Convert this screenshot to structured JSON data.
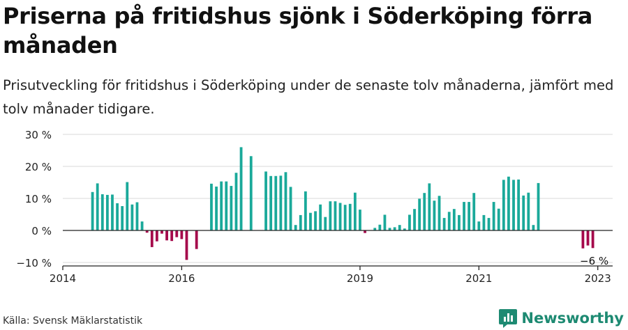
{
  "header": {
    "title": "Priserna på fritidshus sjönk i Söderköping förra månaden",
    "subtitle": "Prisutveckling för fritidshus i Söderköping under de senaste tolv månaderna, jämfört med tolv månader tidigare."
  },
  "footer": {
    "source": "Källa: Svensk Mäklarstatistik",
    "brand": "Newsworthy"
  },
  "colors": {
    "positive": "#1aa99a",
    "negative": "#a5094b",
    "grid": "#d9d9d9",
    "axis": "#222222",
    "brand": "#1d8a72"
  },
  "chart_data": {
    "type": "bar",
    "ylim": [
      -10,
      30
    ],
    "y_ticks": [
      30,
      20,
      10,
      0,
      -10
    ],
    "y_tick_labels": [
      "30 %",
      "20 %",
      "10 %",
      "0 %",
      "−10 %"
    ],
    "x_ticks": [
      {
        "label": "2014",
        "value": "2014-01"
      },
      {
        "label": "2016",
        "value": "2016-01"
      },
      {
        "label": "2019",
        "value": "2019-01"
      },
      {
        "label": "2021",
        "value": "2021-01"
      },
      {
        "label": "2023",
        "value": "2023-01"
      }
    ],
    "x_range": [
      "2014-01",
      "2023-04"
    ],
    "annotation": {
      "text": "−6 %",
      "value": "2022-12"
    },
    "series": [
      {
        "values": [
          [
            "2014-07",
            12
          ],
          [
            "2014-08",
            14.7
          ],
          [
            "2014-09",
            11.3
          ],
          [
            "2014-10",
            11.1
          ],
          [
            "2014-11",
            11.2
          ],
          [
            "2014-12",
            8.5
          ],
          [
            "2015-01",
            7.6
          ],
          [
            "2015-02",
            15.1
          ],
          [
            "2015-03",
            8.1
          ],
          [
            "2015-04",
            8.8
          ],
          [
            "2015-05",
            2.8
          ],
          [
            "2015-06",
            -0.7
          ],
          [
            "2015-07",
            -5.2
          ],
          [
            "2015-08",
            -3.4
          ],
          [
            "2015-09",
            -1.0
          ],
          [
            "2015-10",
            -3.1
          ],
          [
            "2015-11",
            -3.3
          ],
          [
            "2015-12",
            -2.1
          ],
          [
            "2016-01",
            -2.7
          ],
          [
            "2016-02",
            -9.2
          ],
          [
            "2016-04",
            -5.8
          ],
          [
            "2016-07",
            14.6
          ],
          [
            "2016-08",
            13.7
          ],
          [
            "2016-09",
            15.3
          ],
          [
            "2016-10",
            15.3
          ],
          [
            "2016-11",
            13.9
          ],
          [
            "2016-12",
            18.0
          ],
          [
            "2017-01",
            26.0
          ],
          [
            "2017-03",
            23.2
          ],
          [
            "2017-06",
            18.4
          ],
          [
            "2017-07",
            17.0
          ],
          [
            "2017-08",
            17.0
          ],
          [
            "2017-09",
            17.1
          ],
          [
            "2017-10",
            18.2
          ],
          [
            "2017-11",
            13.6
          ],
          [
            "2017-12",
            1.7
          ],
          [
            "2018-01",
            4.8
          ],
          [
            "2018-02",
            12.2
          ],
          [
            "2018-03",
            5.5
          ],
          [
            "2018-04",
            6.0
          ],
          [
            "2018-05",
            8.1
          ],
          [
            "2018-06",
            4.2
          ],
          [
            "2018-07",
            9.1
          ],
          [
            "2018-08",
            9.1
          ],
          [
            "2018-09",
            8.6
          ],
          [
            "2018-10",
            8.0
          ],
          [
            "2018-11",
            8.3
          ],
          [
            "2018-12",
            11.8
          ],
          [
            "2019-01",
            6.5
          ],
          [
            "2019-02",
            -0.8
          ],
          [
            "2019-04",
            0.8
          ],
          [
            "2019-05",
            1.8
          ],
          [
            "2019-06",
            4.9
          ],
          [
            "2019-07",
            0.8
          ],
          [
            "2019-08",
            1.0
          ],
          [
            "2019-09",
            1.7
          ],
          [
            "2019-10",
            0.6
          ],
          [
            "2019-11",
            4.9
          ],
          [
            "2019-12",
            6.7
          ],
          [
            "2020-01",
            9.9
          ],
          [
            "2020-02",
            11.7
          ],
          [
            "2020-03",
            14.7
          ],
          [
            "2020-04",
            9.3
          ],
          [
            "2020-05",
            10.8
          ],
          [
            "2020-06",
            3.9
          ],
          [
            "2020-07",
            5.8
          ],
          [
            "2020-08",
            6.7
          ],
          [
            "2020-09",
            4.8
          ],
          [
            "2020-10",
            8.9
          ],
          [
            "2020-11",
            8.9
          ],
          [
            "2020-12",
            11.7
          ],
          [
            "2021-01",
            2.8
          ],
          [
            "2021-02",
            4.8
          ],
          [
            "2021-03",
            3.9
          ],
          [
            "2021-04",
            8.9
          ],
          [
            "2021-05",
            6.8
          ],
          [
            "2021-06",
            15.8
          ],
          [
            "2021-07",
            16.8
          ],
          [
            "2021-08",
            15.8
          ],
          [
            "2021-09",
            15.9
          ],
          [
            "2021-10",
            10.9
          ],
          [
            "2021-11",
            11.8
          ],
          [
            "2021-12",
            1.7
          ],
          [
            "2022-01",
            14.8
          ],
          [
            "2022-10",
            -5.6
          ],
          [
            "2022-11",
            -4.7
          ],
          [
            "2022-12",
            -5.5
          ]
        ]
      }
    ]
  }
}
